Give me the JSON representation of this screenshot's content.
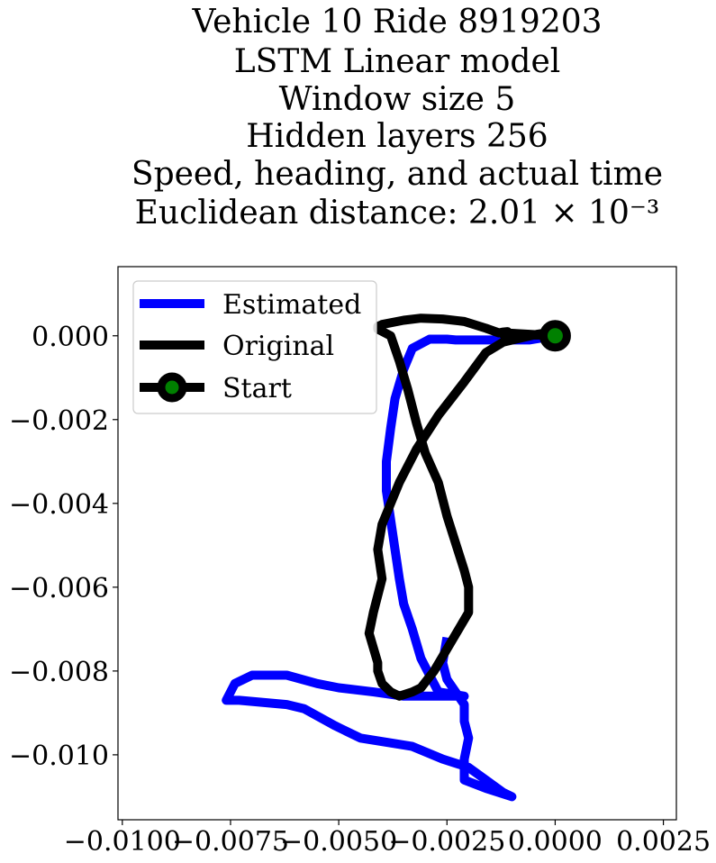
{
  "chart_data": {
    "type": "line",
    "title_lines": [
      "Vehicle 10 Ride 8919203",
      "LSTM Linear model",
      "Window size 5",
      "Hidden layers 256",
      "Speed, heading, and actual time",
      "Euclidean distance: 2.01 × 10⁻³"
    ],
    "xlim": [
      -0.0101,
      0.0028
    ],
    "ylim": [
      -0.01155,
      0.00165
    ],
    "x_ticks": [
      -0.01,
      -0.0075,
      -0.005,
      -0.0025,
      0.0,
      0.0025
    ],
    "x_tick_labels": [
      "−0.0100",
      "−0.0075",
      "−0.0050",
      "−0.0025",
      "0.0000",
      "0.0025"
    ],
    "y_ticks": [
      0.0,
      -0.002,
      -0.004,
      -0.006,
      -0.008,
      -0.01
    ],
    "y_tick_labels": [
      "0.000",
      "−0.002",
      "−0.004",
      "−0.006",
      "−0.008",
      "−0.010"
    ],
    "legend_position": "upper-left",
    "grid": false,
    "series": [
      {
        "name": "Estimated",
        "color": "#0000ff",
        "x": [
          0.0,
          -0.0006,
          -0.0012,
          -0.0018,
          -0.0023,
          -0.0025,
          -0.0029,
          -0.0033,
          -0.0035,
          -0.0037,
          -0.0038,
          -0.0039,
          -0.0039,
          -0.0038,
          -0.0037,
          -0.0036,
          -0.0035,
          -0.0033,
          -0.0031,
          -0.0029,
          -0.0027,
          -0.0021,
          -0.0026,
          -0.0035,
          -0.0042,
          -0.005,
          -0.0055,
          -0.0062,
          -0.007,
          -0.0074,
          -0.0076,
          -0.0073,
          -0.0062,
          -0.0058,
          -0.0051,
          -0.0045,
          -0.0039,
          -0.0033,
          -0.0026,
          -0.002,
          -0.0016,
          -0.0012,
          -0.001,
          -0.0016,
          -0.0021,
          -0.0021,
          -0.002,
          -0.0021,
          -0.0021,
          -0.0023,
          -0.0025,
          -0.0026,
          -0.0025
        ],
        "y": [
          0.0,
          -0.0001,
          -0.0001,
          -0.0001,
          -0.0001,
          -8e-05,
          -8e-05,
          -0.0003,
          -0.0008,
          -0.0015,
          -0.0022,
          -0.003,
          -0.0037,
          -0.0044,
          -0.0051,
          -0.0058,
          -0.0064,
          -0.007,
          -0.0077,
          -0.0081,
          -0.0085,
          -0.0086,
          -0.0086,
          -0.0086,
          -0.0085,
          -0.0084,
          -0.0083,
          -0.0081,
          -0.0081,
          -0.0083,
          -0.0087,
          -0.0087,
          -0.0088,
          -0.0089,
          -0.0093,
          -0.0096,
          -0.0097,
          -0.0098,
          -0.0101,
          -0.0103,
          -0.0106,
          -0.0109,
          -0.011,
          -0.0108,
          -0.0106,
          -0.0101,
          -0.0096,
          -0.0092,
          -0.0088,
          -0.0085,
          -0.0082,
          -0.0078,
          -0.0072
        ]
      },
      {
        "name": "Original",
        "color": "#000000",
        "x": [
          0.0,
          -0.0005,
          -0.001,
          -0.0012,
          -0.0011,
          -0.0011,
          -0.0012,
          -0.0013,
          -0.0016,
          -0.0021,
          -0.0026,
          -0.0031,
          -0.0035,
          -0.004,
          -0.0041,
          -0.0041,
          -0.0038,
          -0.0036,
          -0.0034,
          -0.0032,
          -0.003,
          -0.0027,
          -0.0025,
          -0.0021,
          -0.002,
          -0.002,
          -0.0028,
          -0.0031,
          -0.0033,
          -0.0036,
          -0.0038,
          -0.004,
          -0.0041,
          -0.0041,
          -0.0043,
          -0.0042,
          -0.004,
          -0.0041,
          -0.004,
          -0.0036,
          -0.0032,
          -0.0027,
          -0.0021,
          -0.0016,
          -0.0012,
          -0.0004,
          0.0
        ],
        "y": [
          0.0,
          3e-05,
          6e-05,
          3e-05,
          9e-05,
          0.0001,
          9e-05,
          7e-05,
          0.00018,
          0.00034,
          0.0004,
          0.00042,
          0.00037,
          0.00027,
          0.00022,
          0.00016,
          0.0,
          -0.0006,
          -0.0013,
          -0.0021,
          -0.0028,
          -0.0035,
          -0.0043,
          -0.0056,
          -0.006,
          -0.0066,
          -0.008,
          -0.0084,
          -0.0085,
          -0.0086,
          -0.0085,
          -0.0083,
          -0.008,
          -0.0078,
          -0.0071,
          -0.0066,
          -0.0058,
          -0.0051,
          -0.0045,
          -0.0035,
          -0.0027,
          -0.0019,
          -0.0011,
          -0.0004,
          -0.00015,
          4e-05,
          0.0001
        ]
      }
    ],
    "start_marker": {
      "name": "Start",
      "x": 0.0,
      "y": 0.0,
      "edge_color": "#000000",
      "face_color": "#008000"
    }
  }
}
